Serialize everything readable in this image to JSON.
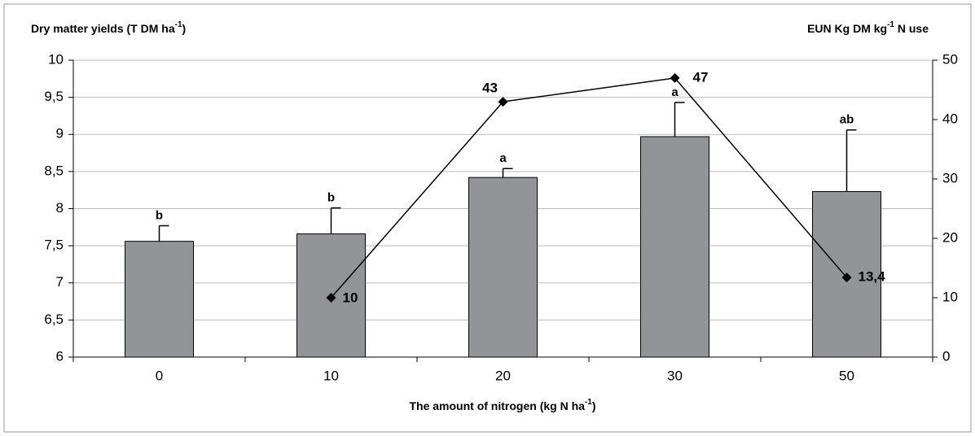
{
  "chart_data": {
    "type": "bar",
    "y_axis_label": [
      "Dry matter yields (T DM ha",
      "-1",
      ")"
    ],
    "y2_axis_label": [
      "EUN Kg DM kg",
      "-1",
      " N use"
    ],
    "x_axis_label": [
      "The amount of nitrogen (kg  N ha",
      "-1",
      ")"
    ],
    "categories": [
      "0",
      "10",
      "20",
      "30",
      "50"
    ],
    "bars": {
      "color": "#929497",
      "values": [
        7.56,
        7.66,
        8.42,
        8.97,
        8.23
      ],
      "errors": [
        0.21,
        0.35,
        0.12,
        0.46,
        0.83
      ],
      "letters": [
        "b",
        "b",
        "a",
        "a",
        "ab"
      ]
    },
    "line": {
      "type": "line",
      "axis": "y2",
      "color": "#000000",
      "values": [
        null,
        10,
        43,
        47,
        13.4
      ],
      "value_labels": [
        null,
        "10",
        "43",
        "47",
        "13,4"
      ]
    },
    "ylim": [
      6,
      10
    ],
    "yticks": [
      6,
      {
        "value": 6.5,
        "label": "6,5"
      },
      7,
      {
        "value": 7.5,
        "label": "7,5"
      },
      8,
      {
        "value": 8.5,
        "label": "8,5"
      },
      9,
      {
        "value": 9.5,
        "label": "9,5"
      },
      10
    ],
    "y2lim": [
      0,
      50
    ],
    "y2ticks": [
      0,
      10,
      20,
      30,
      40,
      50
    ],
    "grid": true
  }
}
